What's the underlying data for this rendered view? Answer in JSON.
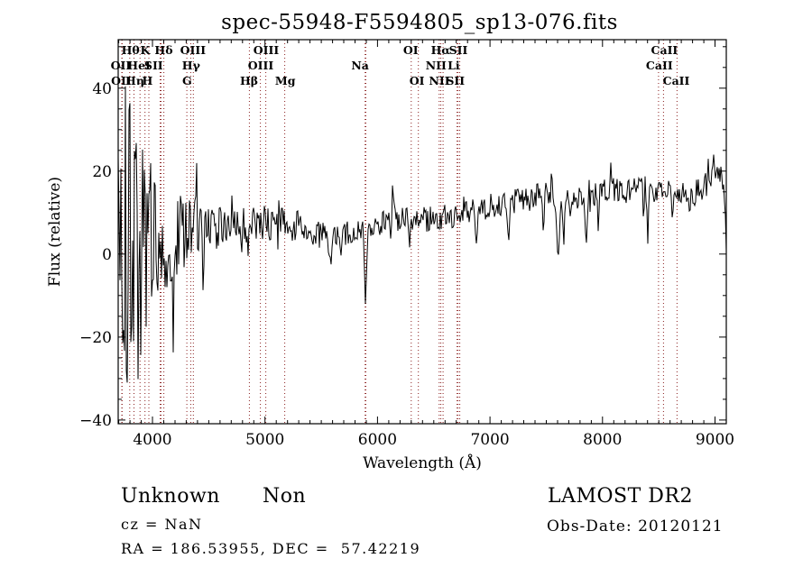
{
  "title": "spec-55948-F5594805_sp13-076.fits",
  "chart_data": {
    "type": "line",
    "title": "spec-55948-F5594805_sp13-076.fits",
    "xlabel": "Wavelength (Å)",
    "ylabel": "Flux (relative)",
    "xlim": [
      3695,
      9100
    ],
    "ylim": [
      -40.9,
      51.7
    ],
    "xticks": [
      4000,
      5000,
      6000,
      7000,
      8000,
      9000
    ],
    "yticks": [
      -40,
      -20,
      0,
      20,
      40
    ],
    "x_minor_step": 100,
    "y_minor_step": 5,
    "grid": false,
    "legend": "none",
    "colors": {
      "trace": "#000000",
      "marker": "#8b2020",
      "background": "#ffffff",
      "axis": "#000000"
    },
    "spectral_lines": {
      "marker_color": "#8b2020",
      "marker_wavelengths": [
        3727,
        3730,
        3798,
        3835,
        3889,
        3933,
        3968,
        4068,
        4076,
        4101,
        4305,
        4340,
        4363,
        4861,
        4959,
        5007,
        5175,
        5890,
        5896,
        6300,
        6363,
        6548,
        6563,
        6583,
        6707,
        6716,
        6731,
        8498,
        8542,
        8662
      ],
      "label_rows": [
        [
          {
            "text": "Hθ",
            "pos": 3805
          },
          {
            "text": "K",
            "pos": 3935
          },
          {
            "text": "Hδ",
            "pos": 4100
          },
          {
            "text": "OIII",
            "pos": 4360
          },
          {
            "text": "OIII",
            "pos": 5010
          },
          {
            "text": "OI",
            "pos": 6295
          },
          {
            "text": "Hα",
            "pos": 6560
          },
          {
            "text": "SII",
            "pos": 6718
          },
          {
            "text": "CaII",
            "pos": 8550
          }
        ],
        [
          {
            "text": "OII",
            "pos": 3718
          },
          {
            "text": "HeI",
            "pos": 3880
          },
          {
            "text": "SII",
            "pos": 4010
          },
          {
            "text": "Hγ",
            "pos": 4343
          },
          {
            "text": "OIII",
            "pos": 4962
          },
          {
            "text": "Na",
            "pos": 5845
          },
          {
            "text": "NII",
            "pos": 6520
          },
          {
            "text": "Li",
            "pos": 6677
          },
          {
            "text": "CaII",
            "pos": 8505
          }
        ],
        [
          {
            "text": "OII",
            "pos": 3722
          },
          {
            "text": "Hη",
            "pos": 3843
          },
          {
            "text": "H",
            "pos": 3955
          },
          {
            "text": "G",
            "pos": 4308
          },
          {
            "text": "Hβ",
            "pos": 4858
          },
          {
            "text": "Mg",
            "pos": 5180
          },
          {
            "text": "OI",
            "pos": 6350
          },
          {
            "text": "NII",
            "pos": 6550
          },
          {
            "text": "SII",
            "pos": 6692
          },
          {
            "text": "CaII",
            "pos": 8655
          }
        ]
      ]
    },
    "spectrum": {
      "seed": 20,
      "envelope": [
        [
          3695,
          0,
          46
        ],
        [
          3760,
          1,
          42
        ],
        [
          3820,
          2,
          36
        ],
        [
          3880,
          3,
          30
        ],
        [
          3950,
          4,
          24
        ],
        [
          4020,
          5,
          19
        ],
        [
          4120,
          4.5,
          14
        ],
        [
          4230,
          5,
          10
        ],
        [
          4350,
          5.5,
          8
        ],
        [
          4480,
          6,
          6
        ],
        [
          4650,
          6.5,
          5
        ],
        [
          4850,
          7,
          4.5
        ],
        [
          5050,
          7.5,
          4.2
        ],
        [
          5250,
          7,
          4
        ],
        [
          5420,
          5.5,
          3.8
        ],
        [
          5560,
          3.5,
          3.5
        ],
        [
          5700,
          4.5,
          3.2
        ],
        [
          5850,
          6,
          3
        ],
        [
          5990,
          7.5,
          3.2
        ],
        [
          6120,
          9,
          3.4
        ],
        [
          6280,
          8,
          3
        ],
        [
          6480,
          8.5,
          3
        ],
        [
          6700,
          9.5,
          3
        ],
        [
          6900,
          11,
          3
        ],
        [
          7100,
          12,
          3
        ],
        [
          7300,
          13.5,
          3
        ],
        [
          7480,
          14.5,
          3
        ],
        [
          7620,
          13,
          2.8
        ],
        [
          7800,
          13.5,
          2.8
        ],
        [
          8000,
          15,
          3
        ],
        [
          8180,
          16,
          3
        ],
        [
          8380,
          15.5,
          3
        ],
        [
          8550,
          15,
          3
        ],
        [
          8720,
          14.5,
          3
        ],
        [
          8880,
          16,
          3.2
        ],
        [
          8990,
          18.5,
          3.4
        ],
        [
          9050,
          19,
          2.5
        ],
        [
          9085,
          14,
          2
        ],
        [
          9100,
          1,
          1
        ]
      ],
      "absorption_features": [
        [
          4185,
          -24,
          6
        ],
        [
          4450,
          -9,
          6
        ],
        [
          5585,
          -3,
          7
        ],
        [
          5893,
          -12,
          9
        ],
        [
          6283,
          1,
          5
        ],
        [
          6880,
          2.5,
          9
        ],
        [
          7165,
          3,
          8
        ],
        [
          7475,
          5,
          7
        ],
        [
          7605,
          -0.5,
          13
        ],
        [
          7655,
          2,
          7
        ],
        [
          7855,
          2.3,
          8
        ],
        [
          7962,
          5.5,
          6
        ],
        [
          8365,
          8.5,
          5
        ],
        [
          8402,
          2.5,
          6
        ],
        [
          8622,
          8,
          6
        ],
        [
          8775,
          9.5,
          6
        ]
      ],
      "emission_spikes": [
        [
          4390,
          23.5,
          5
        ],
        [
          6135,
          17.5,
          5
        ],
        [
          7548,
          21,
          5
        ],
        [
          8072,
          22.5,
          5
        ],
        [
          8940,
          23,
          5
        ],
        [
          8988,
          24,
          5
        ],
        [
          9020,
          21,
          5
        ]
      ]
    }
  },
  "footer": {
    "class_label": "Unknown",
    "subclass_label": "Non",
    "cz": "cz = NaN",
    "radec": "RA = 186.53955, DEC =  57.42219",
    "survey": "LAMOST DR2",
    "obs_date": "Obs-Date: 20120121"
  }
}
